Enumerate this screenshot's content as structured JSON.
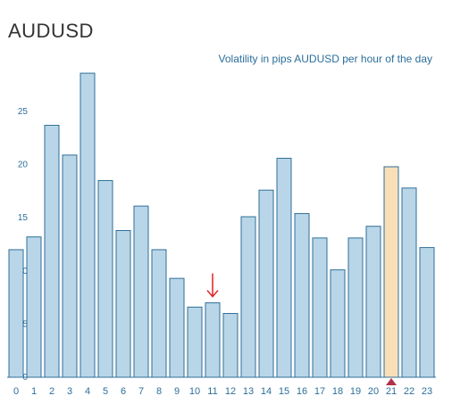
{
  "title": "AUDUSD",
  "subtitle": "Volatility in pips AUDUSD per hour of the day",
  "chart_data": {
    "type": "bar",
    "title": "",
    "subtitle": "Volatility in pips AUDUSD per hour of the day",
    "xlabel": "",
    "ylabel": "",
    "categories": [
      "0",
      "1",
      "2",
      "3",
      "4",
      "5",
      "6",
      "7",
      "8",
      "9",
      "10",
      "11",
      "12",
      "13",
      "14",
      "15",
      "16",
      "17",
      "18",
      "19",
      "20",
      "21",
      "22",
      "23"
    ],
    "values": [
      12.0,
      13.2,
      23.7,
      20.9,
      28.6,
      18.5,
      13.8,
      16.1,
      12.0,
      9.3,
      6.6,
      7.0,
      6.0,
      15.1,
      17.6,
      20.6,
      15.4,
      13.1,
      10.1,
      13.1,
      14.2,
      19.8,
      17.8,
      12.2
    ],
    "ylim": [
      0,
      29
    ],
    "yticks": [
      0,
      5,
      10,
      15,
      20,
      25
    ],
    "highlight_index": 21,
    "grid": false,
    "colors": {
      "bar_fill": "#b9d6e8",
      "bar_stroke": "#2f6f99",
      "highlight_fill": "#f8dfb8",
      "axis": "#2f6f99",
      "marker": "#b0304a",
      "annotation_arrow": "#e02020"
    },
    "annotations": [
      {
        "type": "arrow",
        "category": "11",
        "color": "#e02020"
      }
    ]
  }
}
